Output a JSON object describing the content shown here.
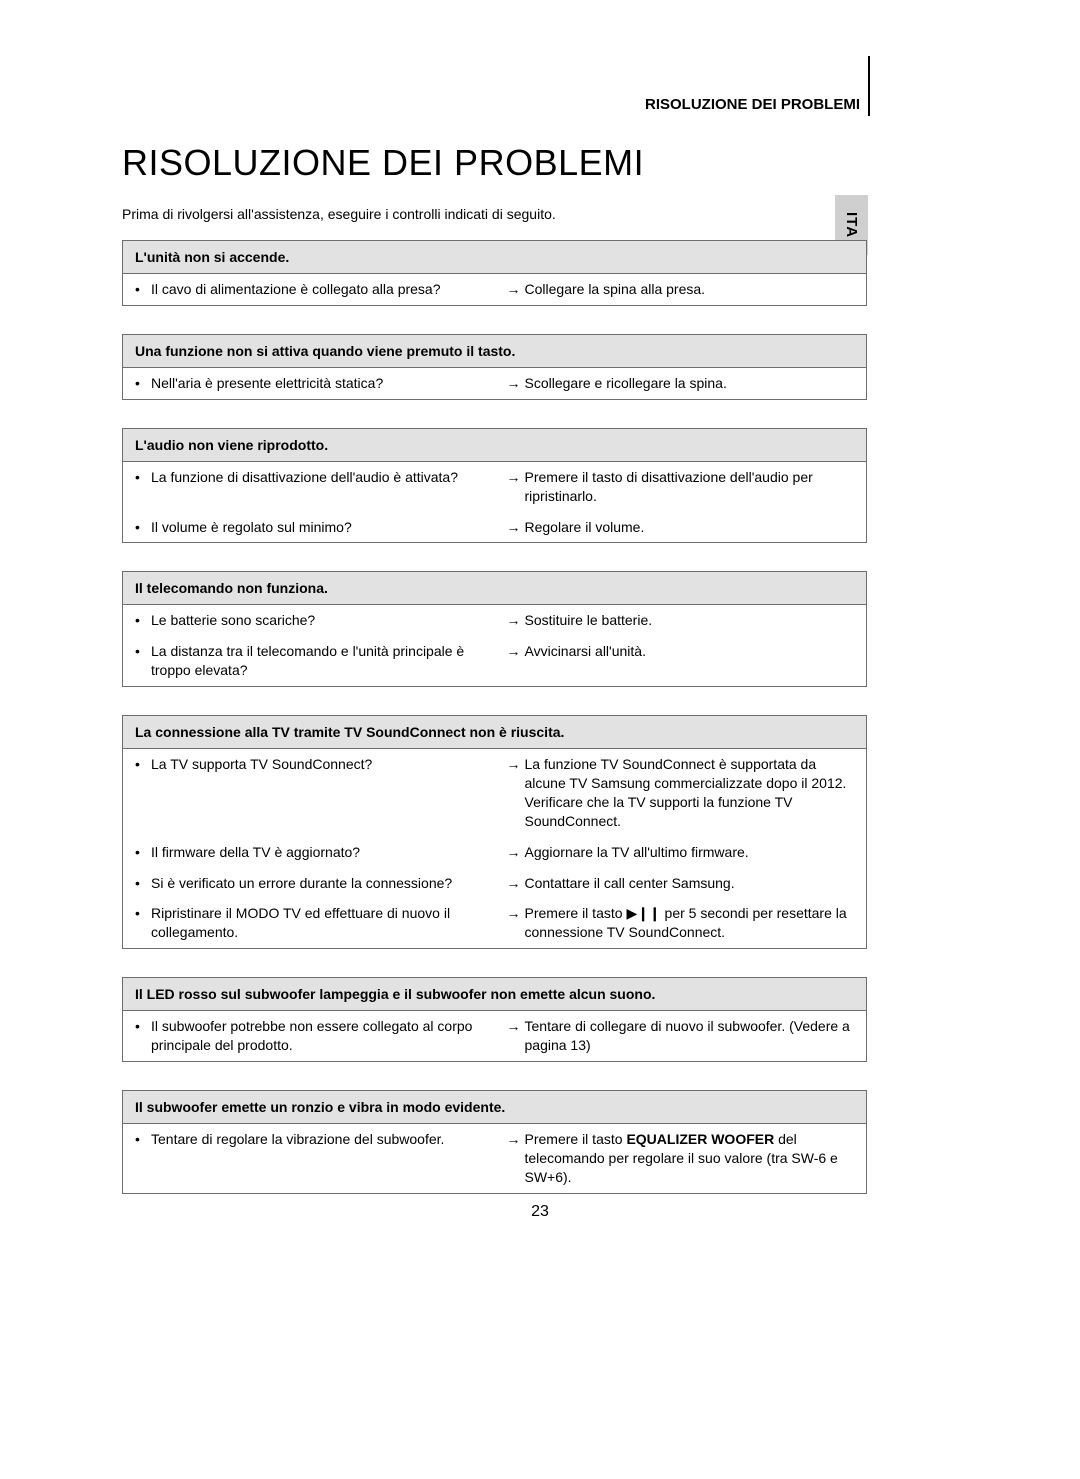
{
  "section_label": "RISOLUZIONE DEI PROBLEMI",
  "lang_tab": "ITA",
  "page_title": "RISOLUZIONE DEI PROBLEMI",
  "intro": "Prima di rivolgersi all'assistenza, eseguire i controlli indicati di seguito.",
  "page_number": "23",
  "arrow_glyph": "→",
  "bullet_glyph": "•",
  "play_pause_glyph": "▶❙❙",
  "tables": {
    "t1": {
      "header": "L'unità non si accende.",
      "rows": [
        {
          "q": "Il cavo di alimentazione è collegato alla presa?",
          "a": "Collegare la spina alla presa."
        }
      ]
    },
    "t2": {
      "header": "Una funzione non si attiva quando viene premuto il tasto.",
      "rows": [
        {
          "q": "Nell'aria è presente elettricità statica?",
          "a": "Scollegare e ricollegare la spina."
        }
      ]
    },
    "t3": {
      "header": "L'audio non viene riprodotto.",
      "rows": [
        {
          "q": "La funzione di disattivazione dell'audio è attivata?",
          "a": "Premere il tasto di disattivazione dell'audio per ripristinarlo."
        },
        {
          "q": "Il volume è regolato sul minimo?",
          "a": "Regolare il volume."
        }
      ]
    },
    "t4": {
      "header": "Il telecomando non funziona.",
      "rows": [
        {
          "q": "Le batterie sono scariche?",
          "a": "Sostituire le batterie."
        },
        {
          "q": "La distanza tra il telecomando e l'unità principale è troppo elevata?",
          "a": "Avvicinarsi all'unità."
        }
      ]
    },
    "t5": {
      "header": "La connessione alla TV tramite TV SoundConnect non è riuscita.",
      "rows": [
        {
          "q": "La TV supporta TV SoundConnect?",
          "a": "La funzione TV SoundConnect è supportata da alcune TV Samsung commercializzate dopo il 2012. Verificare che la TV supporti la funzione TV SoundConnect."
        },
        {
          "q": "Il firmware della TV è aggiornato?",
          "a": "Aggiornare la TV all'ultimo firmware."
        },
        {
          "q": "Si è verificato un errore durante la connessione?",
          "a": "Contattare il call center Samsung."
        },
        {
          "q": "Ripristinare il MODO TV ed effettuare di nuovo il collegamento.",
          "a_prefix": "Premere il tasto ",
          "a_suffix": " per 5 secondi per resettare la connessione TV SoundConnect."
        }
      ]
    },
    "t6": {
      "header": "Il LED rosso sul subwoofer lampeggia e il subwoofer non emette alcun suono.",
      "rows": [
        {
          "q": "Il subwoofer potrebbe non essere collegato al corpo principale del prodotto.",
          "a": "Tentare di collegare di nuovo il subwoofer. (Vedere a pagina 13)"
        }
      ]
    },
    "t7": {
      "header": "Il subwoofer emette un ronzio e vibra in modo evidente.",
      "rows": [
        {
          "q": "Tentare di regolare la vibrazione del subwoofer.",
          "a_prefix": "Premere il tasto ",
          "a_bold": "EQUALIZER WOOFER",
          "a_suffix": " del telecomando per regolare il suo valore (tra SW-6 e SW+6)."
        }
      ]
    }
  }
}
